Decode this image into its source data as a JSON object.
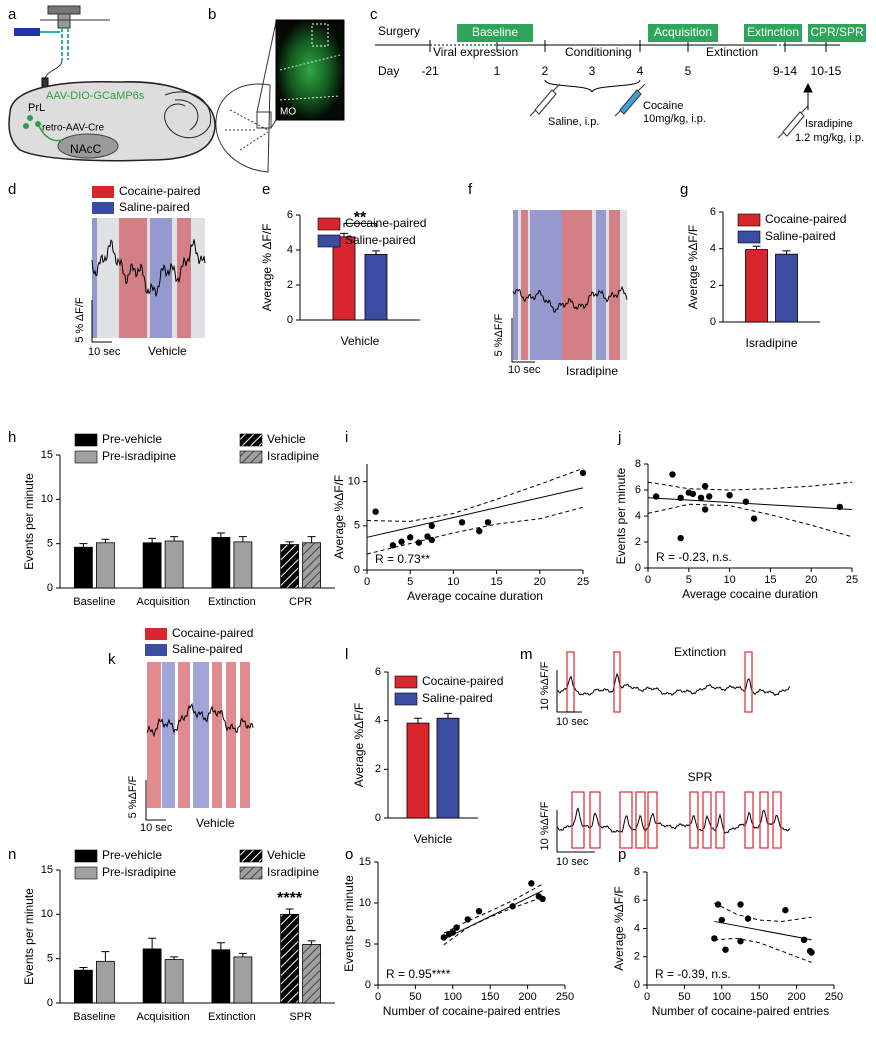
{
  "panel_labels": [
    "a",
    "b",
    "c",
    "d",
    "e",
    "f",
    "g",
    "h",
    "i",
    "j",
    "k",
    "l",
    "m",
    "n",
    "o",
    "p"
  ],
  "panel_a": {
    "virus": "AAV-DIO-GCaMP6s",
    "region": "PrL",
    "retro": "retro-AAV-Cre",
    "target": "NAcC"
  },
  "panel_b": {
    "region": "MO"
  },
  "panel_c": {
    "surgery": "Surgery",
    "phases": [
      "Baseline",
      "Acquisition",
      "Extinction",
      "CPR/SPR"
    ],
    "periods": [
      "Viral expression",
      "Conditioning",
      "Extinction"
    ],
    "day_label": "Day",
    "days": [
      "-21",
      "1",
      "2",
      "3",
      "4",
      "5",
      "9-14",
      "10-15"
    ],
    "saline": "Saline, i.p.",
    "cocaine": [
      "Cocaine",
      "10mg/kg, i.p."
    ],
    "isradipine": [
      "Isradipine",
      "1.2 mg/kg, i.p."
    ]
  },
  "traces": [
    {
      "legend": [
        "Cocaine-paired",
        "Saline-paired"
      ],
      "y_scale": "5 % ΔF/F",
      "x_scale": "10 sec",
      "condition": "Vehicle"
    },
    {
      "y_scale": "5 %ΔF/F",
      "x_scale": "10 sec",
      "condition": "Isradipine"
    },
    {
      "legend": [
        "Cocaine-paired",
        "Saline-paired"
      ],
      "y_scale": "5 %ΔF/F",
      "x_scale": "10 sec",
      "condition": "Vehicle"
    },
    {
      "rows": [
        {
          "title": "Extinction",
          "y_scale": "10 %ΔF/F",
          "x_scale": "10 sec"
        },
        {
          "title": "SPR",
          "y_scale": "10 %ΔF/F",
          "x_scale": "10 sec"
        }
      ]
    }
  ],
  "chart_data": [
    {
      "type": "bar",
      "ylabel": "Average % ΔF/F",
      "categories": [
        "Vehicle"
      ],
      "series": [
        {
          "name": "Cocaine-paired",
          "color": "#d7262e",
          "values": [
            4.75
          ],
          "errors": [
            0.2
          ]
        },
        {
          "name": "Saline-paired",
          "color": "#3b4ca3",
          "values": [
            3.75
          ],
          "errors": [
            0.2
          ]
        }
      ],
      "ylim": [
        0,
        6
      ],
      "yticks": [
        0,
        2,
        4,
        6
      ],
      "annotation": "**"
    },
    {
      "type": "bar",
      "ylabel": "Average %ΔF/F",
      "categories": [
        "Isradipine"
      ],
      "series": [
        {
          "name": "Cocaine-paired",
          "color": "#d7262e",
          "values": [
            3.95
          ],
          "errors": [
            0.18
          ]
        },
        {
          "name": "Saline-paired",
          "color": "#3b4ca3",
          "values": [
            3.7
          ],
          "errors": [
            0.18
          ]
        }
      ],
      "ylim": [
        0,
        6
      ],
      "yticks": [
        0,
        2,
        4,
        6
      ]
    },
    {
      "type": "bar",
      "ylabel": "Events per minute",
      "categories": [
        "Baseline",
        "Acquisition",
        "Extinction",
        "CPR"
      ],
      "series": [
        {
          "name": "Pre-vehicle",
          "color": "#000000",
          "values": [
            4.6,
            5.1,
            5.7,
            null
          ],
          "errors": [
            0.4,
            0.5,
            0.5,
            null
          ]
        },
        {
          "name": "Pre-isradipine",
          "color": "#a0a0a0",
          "values": [
            5.1,
            5.3,
            5.2,
            null
          ],
          "errors": [
            0.4,
            0.5,
            0.6,
            null
          ]
        },
        {
          "name": "Vehicle",
          "color": "#000000",
          "hatch": true,
          "values": [
            null,
            null,
            null,
            4.9
          ],
          "errors": [
            null,
            null,
            null,
            0.3
          ]
        },
        {
          "name": "Isradipine",
          "color": "#a0a0a0",
          "hatch": true,
          "values": [
            null,
            null,
            null,
            5.1
          ],
          "errors": [
            null,
            null,
            null,
            0.7
          ]
        }
      ],
      "ylim": [
        0,
        15
      ],
      "yticks": [
        0,
        5,
        10,
        15
      ]
    },
    {
      "type": "scatter",
      "xlabel": "Average cocaine duration",
      "ylabel": "Average %ΔF/F",
      "x": [
        1,
        3,
        4,
        5,
        6,
        7,
        7.5,
        7.5,
        11,
        13,
        14,
        25
      ],
      "y": [
        6.6,
        2.8,
        3.2,
        3.7,
        3.1,
        3.8,
        3.4,
        5.0,
        5.4,
        4.4,
        5.4,
        11.0
      ],
      "xlim": [
        0,
        25
      ],
      "xticks": [
        0,
        5,
        10,
        15,
        20,
        25
      ],
      "ylim": [
        0,
        12
      ],
      "yticks": [
        0,
        5,
        10
      ],
      "fit": {
        "x": [
          0,
          25
        ],
        "y": [
          3.7,
          9.3
        ]
      },
      "ci": {
        "x": [
          0,
          5,
          10,
          15,
          20,
          25
        ],
        "upper": [
          5.6,
          5.5,
          6.4,
          8.0,
          9.7,
          11.5
        ],
        "lower": [
          1.8,
          3.0,
          4.2,
          5.2,
          5.8,
          7.1
        ]
      },
      "annotation": "R = 0.73**"
    },
    {
      "type": "scatter",
      "xlabel": "Average cocaine duration",
      "ylabel": "Events per minute",
      "x": [
        1,
        3,
        4,
        4,
        5,
        5.5,
        6.5,
        7,
        7,
        7.5,
        10,
        12,
        13,
        23.5
      ],
      "y": [
        5.5,
        7.2,
        5.4,
        2.3,
        5.8,
        5.7,
        5.4,
        4.5,
        6.3,
        5.5,
        5.6,
        5.1,
        3.8,
        4.7
      ],
      "xlim": [
        0,
        25
      ],
      "xticks": [
        0,
        5,
        10,
        15,
        20,
        25
      ],
      "ylim": [
        0,
        8
      ],
      "yticks": [
        0,
        2,
        4,
        6,
        8
      ],
      "fit": {
        "x": [
          0,
          25
        ],
        "y": [
          5.4,
          4.5
        ]
      },
      "ci": {
        "x": [
          0,
          5,
          10,
          15,
          20,
          25
        ],
        "upper": [
          6.6,
          6.1,
          6.0,
          6.1,
          6.3,
          6.6
        ],
        "lower": [
          4.2,
          4.9,
          4.8,
          4.1,
          3.3,
          2.4
        ]
      },
      "annotation": "R = -0.23, n.s."
    },
    {
      "type": "bar",
      "ylabel": "Average %ΔF/F",
      "categories": [
        "Vehicle"
      ],
      "series": [
        {
          "name": "Cocaine-paired",
          "color": "#d7262e",
          "values": [
            3.9
          ],
          "errors": [
            0.2
          ]
        },
        {
          "name": "Saline-paired",
          "color": "#3b4ca3",
          "values": [
            4.1
          ],
          "errors": [
            0.2
          ]
        }
      ],
      "ylim": [
        0,
        6
      ],
      "yticks": [
        0,
        2,
        4,
        6
      ]
    },
    {
      "type": "bar",
      "ylabel": "Events per minute",
      "categories": [
        "Baseline",
        "Acquisition",
        "Extinction",
        "SPR"
      ],
      "series": [
        {
          "name": "Pre-vehicle",
          "color": "#000000",
          "values": [
            3.7,
            6.1,
            6.0,
            null
          ],
          "errors": [
            0.3,
            1.2,
            0.8,
            null
          ]
        },
        {
          "name": "Pre-isradipine",
          "color": "#a0a0a0",
          "values": [
            4.7,
            4.9,
            5.2,
            null
          ],
          "errors": [
            1.1,
            0.3,
            0.4,
            null
          ]
        },
        {
          "name": "Vehicle",
          "color": "#000000",
          "hatch": true,
          "values": [
            null,
            null,
            null,
            10.0
          ],
          "errors": [
            null,
            null,
            null,
            0.6
          ]
        },
        {
          "name": "Isradipine",
          "color": "#a0a0a0",
          "hatch": true,
          "values": [
            null,
            null,
            null,
            6.6
          ],
          "errors": [
            null,
            null,
            null,
            0.4
          ]
        }
      ],
      "ylim": [
        0,
        15
      ],
      "yticks": [
        0,
        5,
        10,
        15
      ],
      "annotation": "****"
    },
    {
      "type": "scatter",
      "xlabel": "Number of cocaine-paired entries",
      "ylabel": "Events per minute",
      "x": [
        88,
        95,
        100,
        105,
        120,
        135,
        180,
        205,
        215,
        220
      ],
      "y": [
        5.8,
        6.2,
        6.4,
        7.0,
        8.0,
        9.0,
        9.6,
        12.4,
        10.8,
        10.5
      ],
      "xlim": [
        0,
        250
      ],
      "xticks": [
        0,
        50,
        100,
        150,
        200,
        250
      ],
      "ylim": [
        0,
        15
      ],
      "yticks": [
        0,
        5,
        10,
        15
      ],
      "fit": {
        "x": [
          88,
          220
        ],
        "y": [
          5.6,
          11.5
        ]
      },
      "ci": {
        "x": [
          88,
          120,
          150,
          180,
          220
        ],
        "upper": [
          6.3,
          7.8,
          9.0,
          10.3,
          12.3
        ],
        "lower": [
          4.9,
          7.0,
          8.3,
          9.4,
          10.7
        ]
      },
      "annotation": "R = 0.95****"
    },
    {
      "type": "scatter",
      "xlabel": "Number of cocaine-paired entries",
      "ylabel": "Average %ΔF/F",
      "x": [
        90,
        95,
        100,
        105,
        125,
        125,
        135,
        185,
        210,
        218,
        220
      ],
      "y": [
        3.3,
        5.7,
        4.6,
        2.5,
        3.1,
        5.7,
        4.7,
        5.3,
        3.2,
        2.4,
        2.3
      ],
      "xlim": [
        0,
        250
      ],
      "xticks": [
        0,
        50,
        100,
        150,
        200,
        250
      ],
      "ylim": [
        0,
        8
      ],
      "yticks": [
        0,
        2,
        4,
        6,
        8
      ],
      "fit": {
        "x": [
          90,
          220
        ],
        "y": [
          4.5,
          3.2
        ]
      },
      "ci": {
        "x": [
          90,
          120,
          150,
          180,
          220
        ],
        "upper": [
          5.8,
          5.0,
          4.6,
          4.5,
          4.8
        ],
        "lower": [
          3.2,
          3.3,
          3.0,
          2.4,
          1.6
        ]
      },
      "annotation": "R = -0.39, n.s."
    }
  ]
}
